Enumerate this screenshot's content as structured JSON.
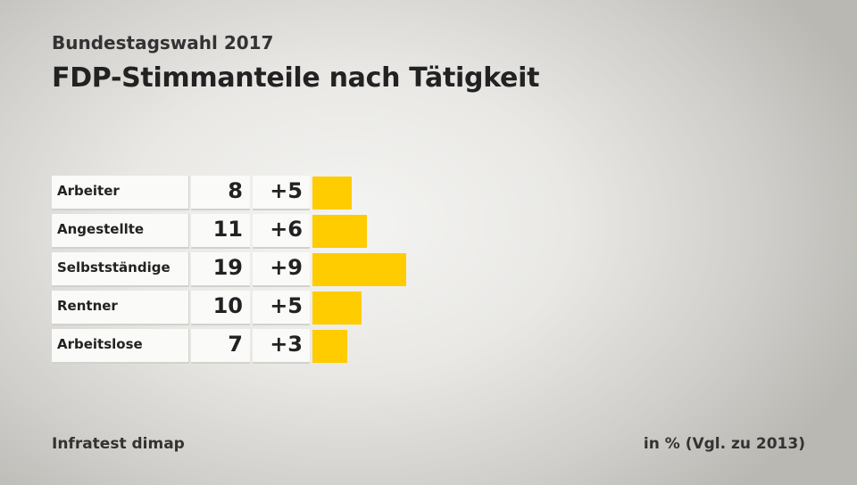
{
  "header": {
    "subtitle": "Bundestagswahl 2017",
    "title": "FDP-Stimmanteile nach Tätigkeit"
  },
  "footer": {
    "source": "Infratest dimap",
    "unit": "in % (Vgl. zu 2013)"
  },
  "colors": {
    "bar": "#ffcc00"
  },
  "chart_data": {
    "type": "bar",
    "orientation": "horizontal",
    "title": "FDP-Stimmanteile nach Tätigkeit",
    "categories": [
      "Arbeiter",
      "Angestellte",
      "Selbstständige",
      "Rentner",
      "Arbeitslose"
    ],
    "values": [
      8,
      11,
      19,
      10,
      7
    ],
    "changes": [
      "+5",
      "+6",
      "+9",
      "+5",
      "+3"
    ],
    "ylim": [
      0,
      19
    ]
  }
}
